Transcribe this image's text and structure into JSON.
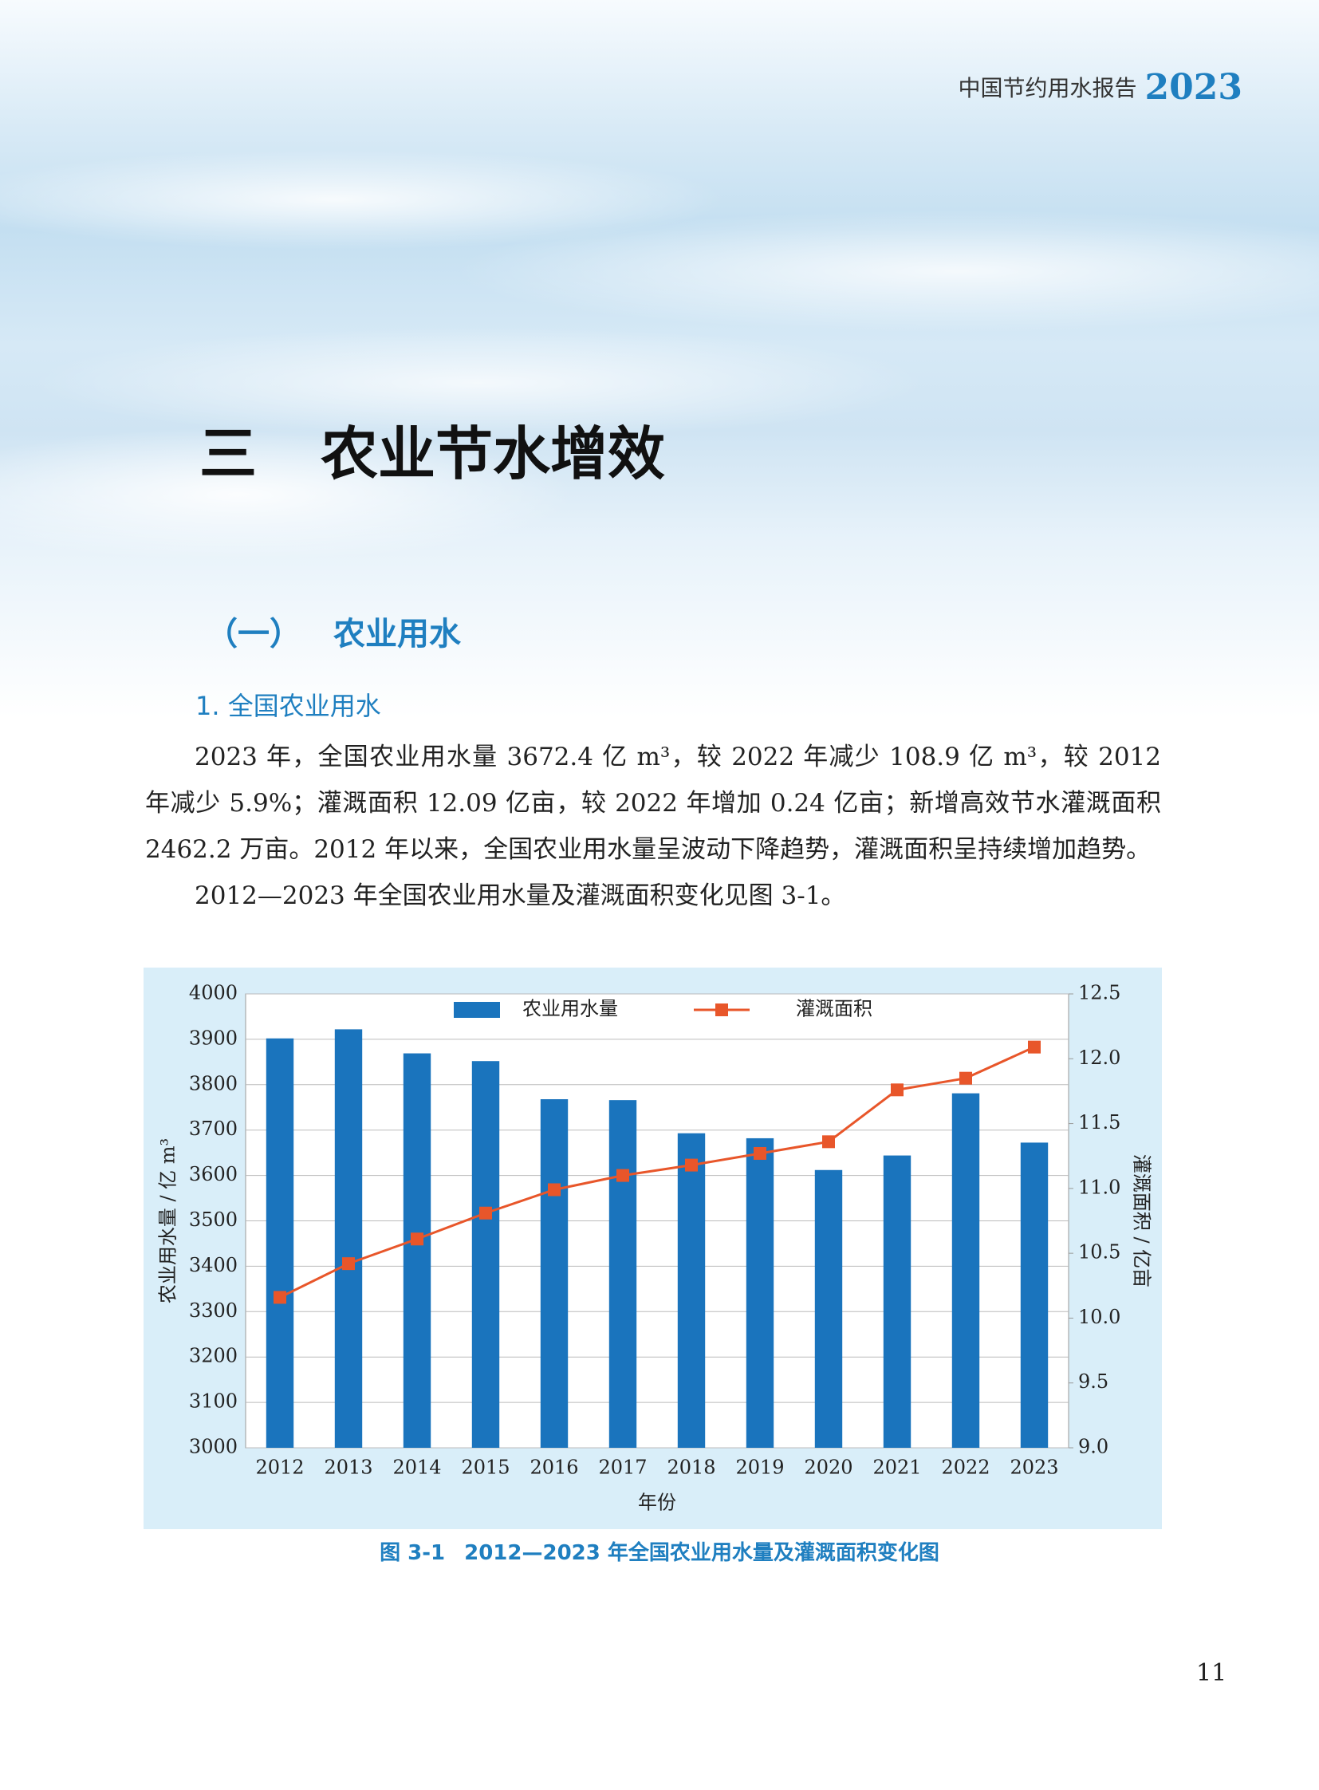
{
  "header": {
    "title": "中国节约用水报告",
    "year": "2023"
  },
  "chapter": {
    "number": "三",
    "title": "农业节水增效"
  },
  "section": {
    "number": "（一）",
    "title": "农业用水"
  },
  "subsection": "1. 全国农业用水",
  "paragraphs": [
    "2023 年，全国农业用水量 3672.4 亿 m³，较 2022 年减少 108.9 亿 m³，较 2012 年减少 5.9%；灌溉面积 12.09 亿亩，较 2022 年增加 0.24 亿亩；新增高效节水灌溉面积 2462.2 万亩。2012 年以来，全国农业用水量呈波动下降趋势，灌溉面积呈持续增加趋势。",
    "2012—2023 年全国农业用水量及灌溉面积变化见图 3-1。"
  ],
  "chart_data": {
    "type": "bar_line",
    "x_label": "年份",
    "y_label": "农业用水量 / 亿 m³",
    "y2_label": "灌溉面积 / 亿亩",
    "categories": [
      "2012",
      "2013",
      "2014",
      "2015",
      "2016",
      "2017",
      "2018",
      "2019",
      "2020",
      "2021",
      "2022",
      "2023"
    ],
    "series": [
      {
        "name": "农业用水量",
        "kind": "bar",
        "color": "#1a74bd",
        "values": [
          3902,
          3922,
          3869,
          3852,
          3768,
          3766,
          3693,
          3682,
          3612,
          3644,
          3781,
          3672.4
        ]
      },
      {
        "name": "灌溉面积",
        "kind": "line",
        "axis": "y2",
        "color": "#e8562a",
        "values": [
          10.16,
          10.42,
          10.61,
          10.81,
          10.99,
          11.1,
          11.18,
          11.27,
          11.36,
          11.76,
          11.85,
          12.09
        ]
      }
    ],
    "ylim": [
      3000,
      4000
    ],
    "yticks": [
      3000,
      3100,
      3200,
      3300,
      3400,
      3500,
      3600,
      3700,
      3800,
      3900,
      4000
    ],
    "y2lim": [
      9,
      12.5
    ],
    "y2ticks": [
      {
        "value": 9,
        "label": "9.0"
      },
      9.5,
      {
        "value": 10,
        "label": "10.0"
      },
      10.5,
      {
        "value": 11,
        "label": "11.0"
      },
      11.5,
      {
        "value": 12,
        "label": "12.0"
      },
      12.5
    ],
    "grid": true,
    "legend": "top"
  },
  "caption": {
    "label": "图 3-1",
    "text": "2012—2023 年全国农业用水量及灌溉面积变化图"
  },
  "page_number": "11"
}
